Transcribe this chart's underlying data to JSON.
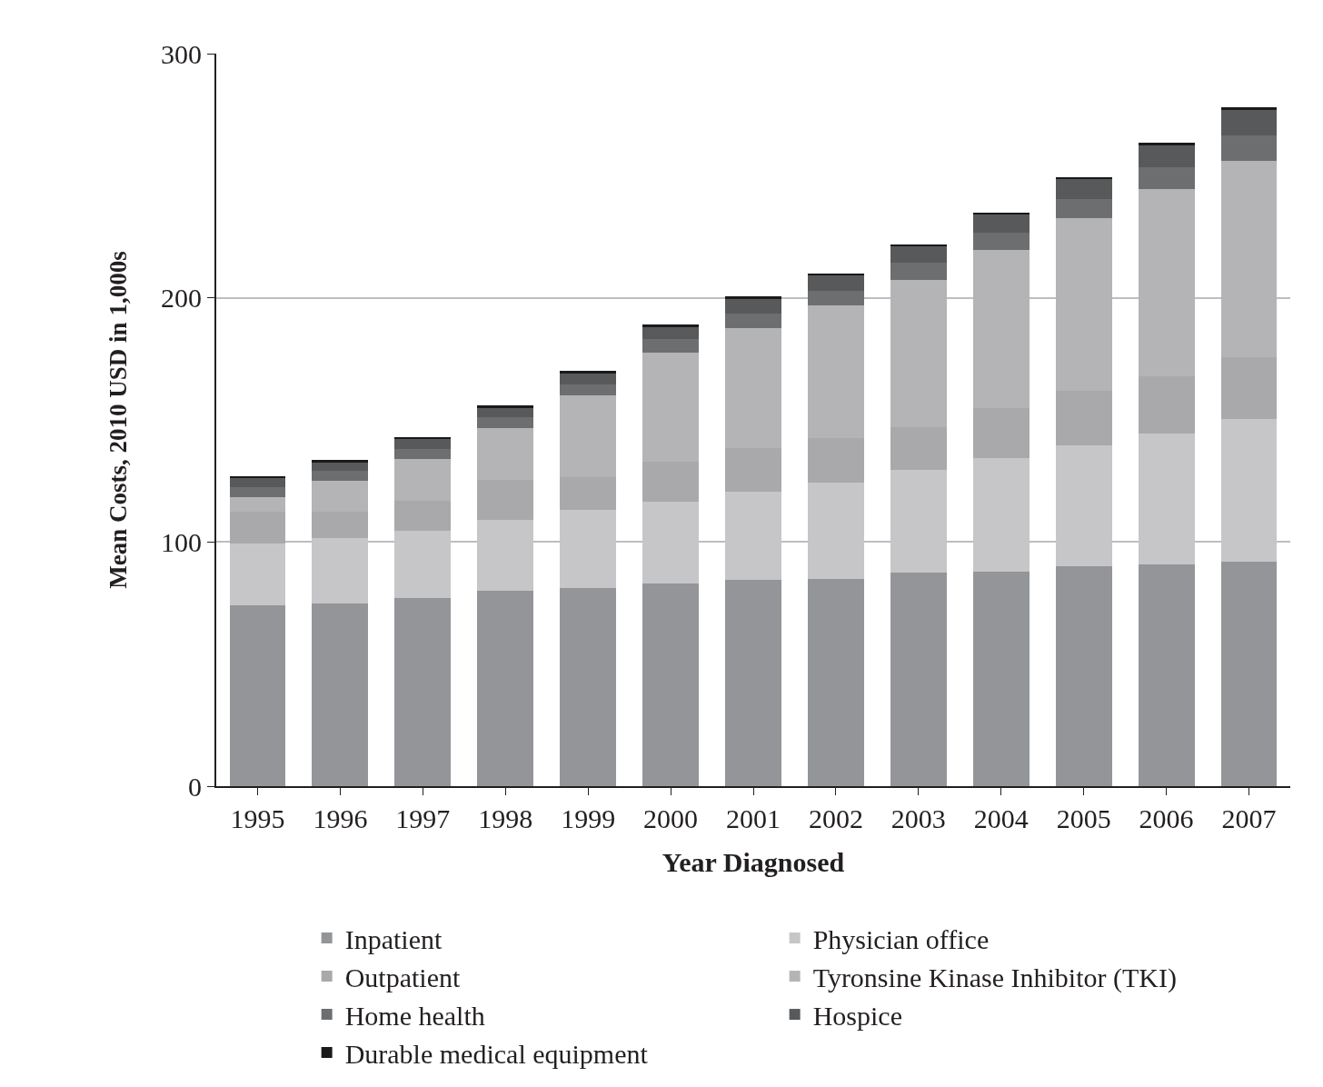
{
  "chart_data": {
    "type": "bar",
    "stacked": true,
    "xlabel": "Year Diagnosed",
    "ylabel": "Mean Costs, 2010 USD in 1,000s",
    "categories": [
      "1995",
      "1996",
      "1997",
      "1998",
      "1999",
      "2000",
      "2001",
      "2002",
      "2003",
      "2004",
      "2005",
      "2006",
      "2007"
    ],
    "series": [
      {
        "name": "Inpatient",
        "color": "#939598",
        "values": [
          74,
          75,
          77,
          80,
          81,
          83,
          84.5,
          85,
          87.5,
          88,
          90,
          91,
          92
        ]
      },
      {
        "name": "Physician office",
        "color": "#c6c6c8",
        "values": [
          25.5,
          26.5,
          27.5,
          29,
          32,
          33.5,
          36,
          39.5,
          42,
          46.5,
          49.5,
          53.5,
          58.5
        ]
      },
      {
        "name": "Outpatient",
        "color": "#a9a9ab",
        "values": [
          13,
          11,
          12.5,
          16.5,
          13.5,
          16.5,
          18,
          18,
          17.5,
          20.5,
          22.5,
          23.5,
          25
        ]
      },
      {
        "name": "Tyronsine Kinase Inhibitor (TKI)",
        "color": "#b4b4b6",
        "values": [
          6,
          12.5,
          17,
          21,
          33.5,
          44.5,
          49,
          54.5,
          60.5,
          64.5,
          70.5,
          76.5,
          80.5
        ]
      },
      {
        "name": "Home health",
        "color": "#6d6e70",
        "values": [
          4,
          4,
          4,
          4.5,
          4.5,
          5.5,
          6,
          6,
          7,
          7,
          8,
          9,
          10.5
        ]
      },
      {
        "name": "Hospice",
        "color": "#58595b",
        "values": [
          3.5,
          3.5,
          4,
          4,
          4.5,
          5,
          6,
          6,
          6.5,
          7.5,
          8,
          9,
          10.5
        ]
      },
      {
        "name": "Durable medical equipment",
        "color": "#1a1a1a",
        "values": [
          1,
          1,
          1,
          1,
          1,
          1,
          1,
          1,
          1,
          1,
          1,
          1,
          1
        ]
      }
    ],
    "ylim": [
      0,
      300
    ],
    "yticks": [
      0,
      100,
      200,
      300
    ],
    "grid": "y",
    "legend": "bottom"
  }
}
